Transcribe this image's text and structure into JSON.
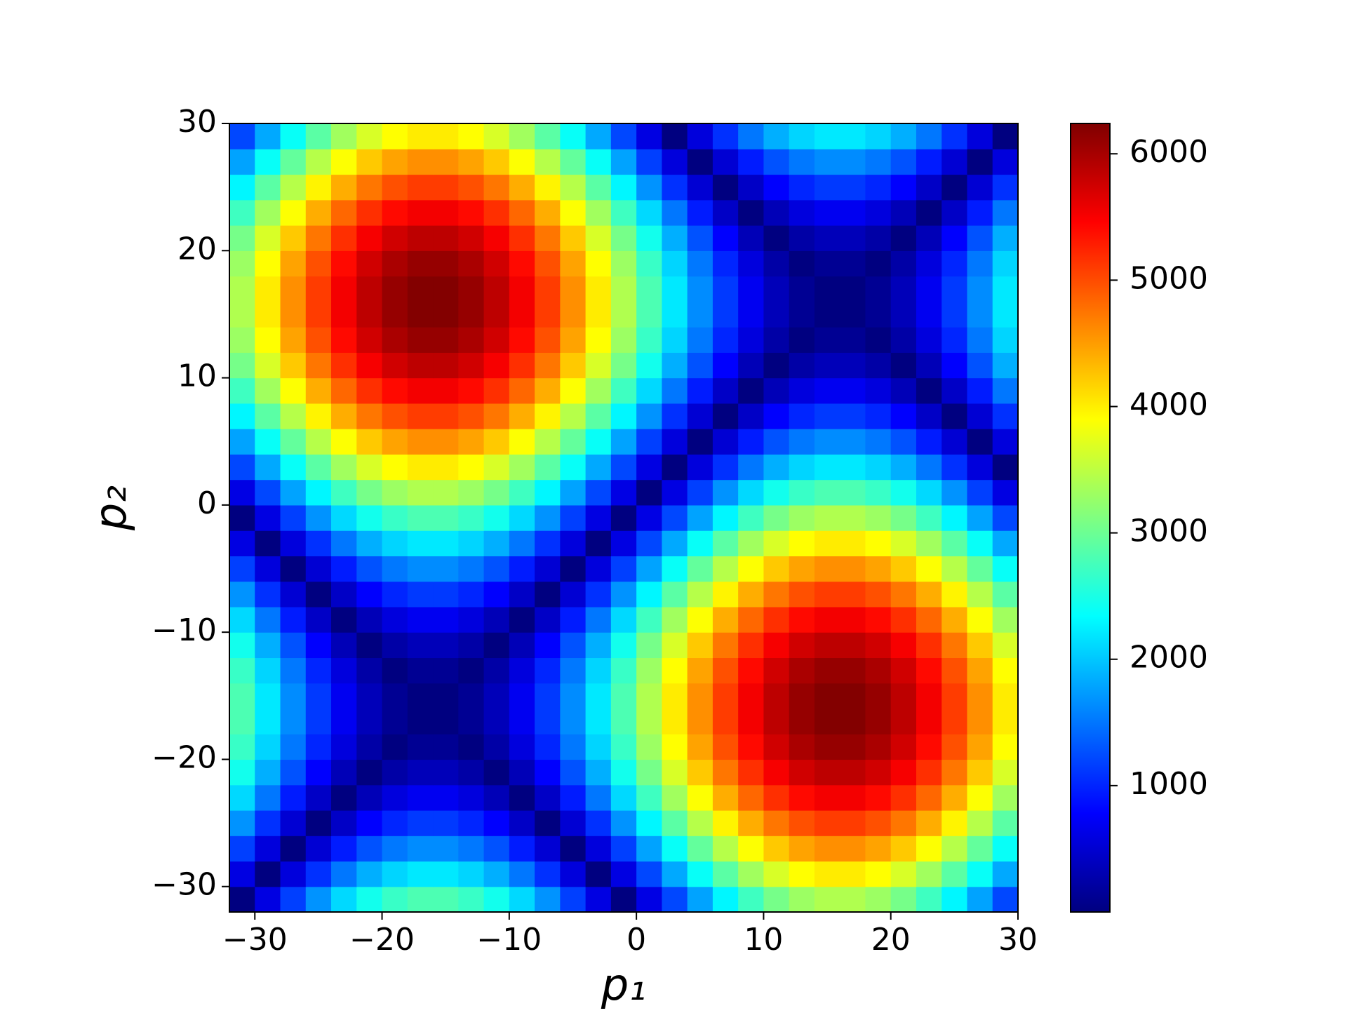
{
  "chart_data": {
    "type": "heatmap",
    "colormap": "jet",
    "xlabel": "p₁",
    "ylabel": "p₂",
    "xlim": [
      -32,
      30
    ],
    "ylim": [
      -32,
      30
    ],
    "xticks": [
      {
        "value": -30,
        "label": "−30"
      },
      {
        "value": -20,
        "label": "−20"
      },
      {
        "value": -10,
        "label": "−10"
      },
      0,
      10,
      20,
      30
    ],
    "yticks": [
      {
        "value": -30,
        "label": "−30"
      },
      {
        "value": -20,
        "label": "−20"
      },
      {
        "value": -10,
        "label": "−10"
      },
      0,
      10,
      20,
      30
    ],
    "clim": [
      0,
      6240
    ],
    "cticks": [
      1000,
      2000,
      3000,
      4000,
      5000,
      6000
    ],
    "z": [
      [
        0,
        601,
        1167,
        1677,
        2110,
        2450,
        2684,
        2804,
        2804,
        2684,
        2450,
        2110,
        1677,
        1167,
        601,
        0,
        612,
        1213,
        1779,
        2289,
        2722,
        3062,
        3296,
        3416,
        3416,
        3296,
        3062,
        2722,
        2289,
        1779,
        1213
      ],
      [
        601,
        0,
        566,
        1076,
        1509,
        1849,
        2083,
        2203,
        2203,
        2083,
        1849,
        1509,
        1076,
        566,
        0,
        601,
        1213,
        1814,
        2380,
        2890,
        3323,
        3663,
        3897,
        4017,
        4017,
        3897,
        3663,
        3323,
        2890,
        2380,
        1814
      ],
      [
        1167,
        566,
        0,
        510,
        943,
        1283,
        1517,
        1637,
        1637,
        1517,
        1283,
        943,
        510,
        0,
        566,
        1167,
        1779,
        2380,
        2946,
        3456,
        3889,
        4229,
        4463,
        4583,
        4583,
        4463,
        4229,
        3889,
        3456,
        2946,
        2380
      ],
      [
        1677,
        1076,
        510,
        0,
        433,
        773,
        1007,
        1127,
        1127,
        1007,
        773,
        433,
        0,
        510,
        1076,
        1677,
        2289,
        2890,
        3456,
        3966,
        4399,
        4739,
        4973,
        5093,
        5093,
        4973,
        4739,
        4399,
        3966,
        3456,
        2890
      ],
      [
        2110,
        1509,
        943,
        433,
        0,
        340,
        574,
        694,
        694,
        574,
        340,
        0,
        433,
        943,
        1509,
        2110,
        2722,
        3323,
        3889,
        4399,
        4832,
        5172,
        5406,
        5526,
        5526,
        5406,
        5172,
        4832,
        4399,
        3889,
        3323
      ],
      [
        2450,
        1849,
        1283,
        773,
        340,
        0,
        234,
        354,
        354,
        234,
        0,
        340,
        773,
        1283,
        1849,
        2450,
        3062,
        3663,
        4229,
        4739,
        5172,
        5512,
        5746,
        5866,
        5866,
        5746,
        5512,
        5172,
        4739,
        4229,
        3663
      ],
      [
        2684,
        2083,
        1517,
        1007,
        574,
        234,
        0,
        120,
        120,
        0,
        234,
        574,
        1007,
        1517,
        2083,
        2684,
        3296,
        3897,
        4463,
        4973,
        5406,
        5746,
        5980,
        6100,
        6100,
        5980,
        5746,
        5406,
        4973,
        4463,
        3897
      ],
      [
        2804,
        2203,
        1637,
        1127,
        694,
        354,
        120,
        0,
        0,
        120,
        354,
        694,
        1127,
        1637,
        2203,
        2804,
        3416,
        4017,
        4583,
        5093,
        5526,
        5866,
        6100,
        6220,
        6220,
        6100,
        5866,
        5526,
        5093,
        4583,
        4017
      ],
      [
        2804,
        2203,
        1637,
        1127,
        694,
        354,
        120,
        0,
        0,
        120,
        354,
        694,
        1127,
        1637,
        2203,
        2804,
        3416,
        4017,
        4583,
        5093,
        5526,
        5866,
        6100,
        6220,
        6220,
        6100,
        5866,
        5526,
        5093,
        4583,
        4017
      ],
      [
        2684,
        2083,
        1517,
        1007,
        574,
        234,
        0,
        120,
        120,
        0,
        234,
        574,
        1007,
        1517,
        2083,
        2684,
        3296,
        3897,
        4463,
        4973,
        5406,
        5746,
        5980,
        6100,
        6100,
        5980,
        5746,
        5406,
        4973,
        4463,
        3897
      ],
      [
        2450,
        1849,
        1283,
        773,
        340,
        0,
        234,
        354,
        354,
        234,
        0,
        340,
        773,
        1283,
        1849,
        2450,
        3062,
        3663,
        4229,
        4739,
        5172,
        5512,
        5746,
        5866,
        5866,
        5746,
        5512,
        5172,
        4739,
        4229,
        3663
      ],
      [
        2110,
        1509,
        943,
        433,
        0,
        340,
        574,
        694,
        694,
        574,
        340,
        0,
        433,
        943,
        1509,
        2110,
        2722,
        3323,
        3889,
        4399,
        4832,
        5172,
        5406,
        5526,
        5526,
        5406,
        5172,
        4832,
        4399,
        3889,
        3323
      ],
      [
        1677,
        1076,
        510,
        0,
        433,
        773,
        1007,
        1127,
        1127,
        1007,
        773,
        433,
        0,
        510,
        1076,
        1677,
        2289,
        2890,
        3456,
        3966,
        4399,
        4739,
        4973,
        5093,
        5093,
        4973,
        4739,
        4399,
        3966,
        3456,
        2890
      ],
      [
        1167,
        566,
        0,
        510,
        943,
        1283,
        1517,
        1637,
        1637,
        1517,
        1283,
        943,
        510,
        0,
        566,
        1167,
        1779,
        2380,
        2946,
        3456,
        3889,
        4229,
        4463,
        4583,
        4583,
        4463,
        4229,
        3889,
        3456,
        2946,
        2380
      ],
      [
        601,
        0,
        566,
        1076,
        1509,
        1849,
        2083,
        2203,
        2203,
        2083,
        1849,
        1509,
        1076,
        566,
        0,
        601,
        1213,
        1814,
        2380,
        2890,
        3323,
        3663,
        3897,
        4017,
        4017,
        3897,
        3663,
        3323,
        2890,
        2380,
        1814
      ],
      [
        0,
        601,
        1167,
        1677,
        2110,
        2450,
        2684,
        2804,
        2804,
        2684,
        2450,
        2110,
        1677,
        1167,
        601,
        0,
        612,
        1213,
        1779,
        2289,
        2722,
        3062,
        3296,
        3416,
        3416,
        3296,
        3062,
        2722,
        2289,
        1779,
        1213
      ],
      [
        612,
        1213,
        1779,
        2289,
        2722,
        3062,
        3296,
        3416,
        3416,
        3296,
        3062,
        2722,
        2289,
        1779,
        1213,
        612,
        0,
        601,
        1167,
        1677,
        2110,
        2450,
        2684,
        2804,
        2804,
        2684,
        2450,
        2110,
        1677,
        1167,
        601
      ],
      [
        1213,
        1814,
        2380,
        2890,
        3323,
        3663,
        3897,
        4017,
        4017,
        3897,
        3663,
        3323,
        2890,
        2380,
        1814,
        1213,
        601,
        0,
        566,
        1076,
        1509,
        1849,
        2083,
        2203,
        2203,
        2083,
        1849,
        1509,
        1076,
        566,
        0
      ],
      [
        1779,
        2380,
        2946,
        3456,
        3889,
        4229,
        4463,
        4583,
        4583,
        4463,
        4229,
        3889,
        3456,
        2946,
        2380,
        1779,
        1167,
        566,
        0,
        510,
        943,
        1283,
        1517,
        1637,
        1637,
        1517,
        1283,
        943,
        510,
        0,
        566
      ],
      [
        2289,
        2890,
        3456,
        3966,
        4399,
        4739,
        4973,
        5093,
        5093,
        4973,
        4739,
        4399,
        3966,
        3456,
        2890,
        2289,
        1677,
        1076,
        510,
        0,
        433,
        773,
        1007,
        1127,
        1127,
        1007,
        773,
        433,
        0,
        510,
        1076
      ],
      [
        2722,
        3323,
        3889,
        4399,
        4832,
        5172,
        5406,
        5526,
        5526,
        5406,
        5172,
        4832,
        4399,
        3889,
        3323,
        2722,
        2110,
        1509,
        943,
        433,
        0,
        340,
        574,
        694,
        694,
        574,
        340,
        0,
        433,
        943,
        1509
      ],
      [
        3062,
        3663,
        4229,
        4739,
        5172,
        5512,
        5746,
        5866,
        5866,
        5746,
        5512,
        5172,
        4739,
        4229,
        3663,
        3062,
        2450,
        1849,
        1283,
        773,
        340,
        0,
        234,
        354,
        354,
        234,
        0,
        340,
        773,
        1283,
        1849
      ],
      [
        3296,
        3897,
        4463,
        4973,
        5406,
        5746,
        5980,
        6100,
        6100,
        5980,
        5746,
        5406,
        4973,
        4463,
        3897,
        3296,
        2684,
        2083,
        1517,
        1007,
        574,
        234,
        0,
        120,
        120,
        0,
        234,
        574,
        1007,
        1517,
        2083
      ],
      [
        3416,
        4017,
        4583,
        5093,
        5526,
        5866,
        6100,
        6220,
        6220,
        6100,
        5866,
        5526,
        5093,
        4583,
        4017,
        3416,
        2804,
        2203,
        1637,
        1127,
        694,
        354,
        120,
        0,
        0,
        120,
        354,
        694,
        1127,
        1637,
        2203
      ],
      [
        3416,
        4017,
        4583,
        5093,
        5526,
        5866,
        6100,
        6220,
        6220,
        6100,
        5866,
        5526,
        5093,
        4583,
        4017,
        3416,
        2804,
        2203,
        1637,
        1127,
        694,
        354,
        120,
        0,
        0,
        120,
        354,
        694,
        1127,
        1637,
        2203
      ],
      [
        3296,
        3897,
        4463,
        4973,
        5406,
        5746,
        5980,
        6100,
        6100,
        5980,
        5746,
        5406,
        4973,
        4463,
        3897,
        3296,
        2684,
        2083,
        1517,
        1007,
        574,
        234,
        0,
        120,
        120,
        0,
        234,
        574,
        1007,
        1517,
        2083
      ],
      [
        3062,
        3663,
        4229,
        4739,
        5172,
        5512,
        5746,
        5866,
        5866,
        5746,
        5512,
        5172,
        4739,
        4229,
        3663,
        3062,
        2450,
        1849,
        1283,
        773,
        340,
        0,
        234,
        354,
        354,
        234,
        0,
        340,
        773,
        1283,
        1849
      ],
      [
        2722,
        3323,
        3889,
        4399,
        4832,
        5172,
        5406,
        5526,
        5526,
        5406,
        5172,
        4832,
        4399,
        3889,
        3323,
        2722,
        2110,
        1509,
        943,
        433,
        0,
        340,
        574,
        694,
        694,
        574,
        340,
        0,
        433,
        943,
        1509
      ],
      [
        2289,
        2890,
        3456,
        3966,
        4399,
        4739,
        4973,
        5093,
        5093,
        4973,
        4739,
        4399,
        3966,
        3456,
        2890,
        2289,
        1677,
        1076,
        510,
        0,
        433,
        773,
        1007,
        1127,
        1127,
        1007,
        773,
        433,
        0,
        510,
        1076
      ],
      [
        1779,
        2380,
        2946,
        3456,
        3889,
        4229,
        4463,
        4583,
        4583,
        4463,
        4229,
        3889,
        3456,
        2946,
        2380,
        1779,
        1167,
        566,
        0,
        510,
        943,
        1283,
        1517,
        1637,
        1637,
        1517,
        1283,
        943,
        510,
        0,
        566
      ],
      [
        1213,
        1814,
        2380,
        2890,
        3323,
        3663,
        3897,
        4017,
        4017,
        3897,
        3663,
        3323,
        2890,
        2380,
        1814,
        1213,
        601,
        0,
        566,
        1076,
        1509,
        1849,
        2083,
        2203,
        2203,
        2083,
        1849,
        1509,
        1076,
        566,
        0
      ]
    ]
  }
}
